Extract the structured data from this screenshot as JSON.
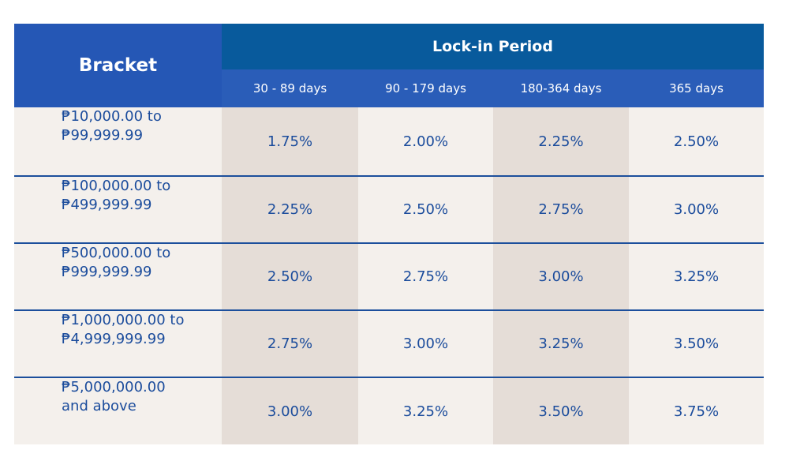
{
  "header": {
    "bracket": "Bracket",
    "group": "Lock-in Period",
    "periods": [
      "30 - 89 days",
      "90 - 179 days",
      "180-364 days",
      "365 days"
    ]
  },
  "rows": [
    {
      "bracket": [
        "₱10,000.00 to",
        "₱99,999.99"
      ],
      "rates": [
        "1.75%",
        "2.00%",
        "2.25%",
        "2.50%"
      ]
    },
    {
      "bracket": [
        "₱100,000.00 to",
        "₱499,999.99"
      ],
      "rates": [
        "2.25%",
        "2.50%",
        "2.75%",
        "3.00%"
      ]
    },
    {
      "bracket": [
        "₱500,000.00 to",
        "₱999,999.99"
      ],
      "rates": [
        "2.50%",
        "2.75%",
        "3.00%",
        "3.25%"
      ]
    },
    {
      "bracket": [
        "₱1,000,000.00 to",
        "₱4,999,999.99"
      ],
      "rates": [
        "2.75%",
        "3.00%",
        "3.25%",
        "3.50%"
      ]
    },
    {
      "bracket": [
        "₱5,000,000.00",
        "and above"
      ],
      "rates": [
        "3.00%",
        "3.25%",
        "3.50%",
        "3.75%"
      ]
    }
  ]
}
